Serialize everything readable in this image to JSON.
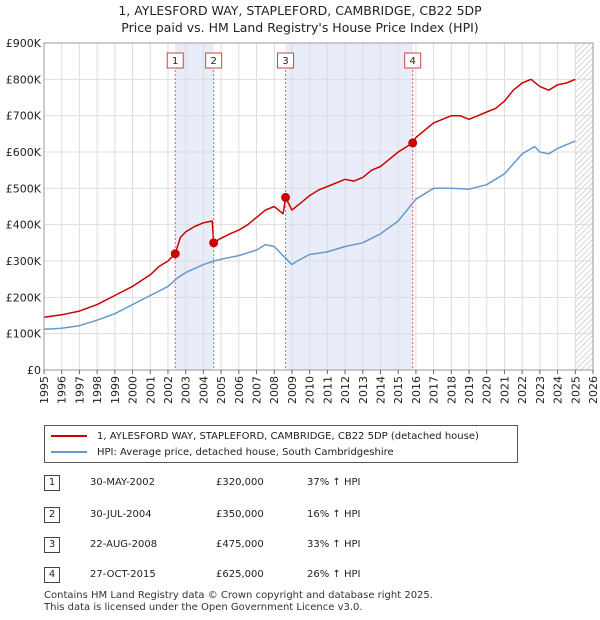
{
  "title_line1": "1, AYLESFORD WAY, STAPLEFORD, CAMBRIDGE, CB22 5DP",
  "title_line2": "Price paid vs. HM Land Registry's House Price Index (HPI)",
  "chart_data": {
    "type": "line",
    "xlim": [
      1995,
      2026
    ],
    "ylim": [
      0,
      900000
    ],
    "y_ticks": [
      {
        "value": 0,
        "label": "£0"
      },
      {
        "value": 100000,
        "label": "£100K"
      },
      {
        "value": 200000,
        "label": "£200K"
      },
      {
        "value": 300000,
        "label": "£300K"
      },
      {
        "value": 400000,
        "label": "£400K"
      },
      {
        "value": 500000,
        "label": "£500K"
      },
      {
        "value": 600000,
        "label": "£600K"
      },
      {
        "value": 700000,
        "label": "£700K"
      },
      {
        "value": 800000,
        "label": "£800K"
      },
      {
        "value": 900000,
        "label": "£900K"
      }
    ],
    "x_ticks": [
      "1995",
      "1996",
      "1997",
      "1998",
      "1999",
      "2000",
      "2001",
      "2002",
      "2003",
      "2004",
      "2005",
      "2006",
      "2007",
      "2008",
      "2009",
      "2010",
      "2011",
      "2012",
      "2013",
      "2014",
      "2015",
      "2016",
      "2017",
      "2018",
      "2019",
      "2020",
      "2021",
      "2022",
      "2023",
      "2024",
      "2025",
      "2026"
    ],
    "shaded_ranges": [
      [
        2002.41,
        2004.58
      ],
      [
        2008.64,
        2015.82
      ]
    ],
    "future_hatch_from": 2025.0,
    "series": [
      {
        "name": "1, AYLESFORD WAY, STAPLEFORD, CAMBRIDGE, CB22 5DP (detached house)",
        "color": "#cc0000",
        "x": [
          1995.0,
          1996.0,
          1997.0,
          1998.0,
          1999.0,
          2000.0,
          2001.0,
          2001.5,
          2002.0,
          2002.41,
          2002.7,
          2003.0,
          2003.5,
          2004.0,
          2004.5,
          2004.58,
          2004.9,
          2005.5,
          2006.0,
          2006.5,
          2007.0,
          2007.5,
          2008.0,
          2008.5,
          2008.64,
          2009.0,
          2009.5,
          2010.0,
          2010.5,
          2011.0,
          2011.5,
          2012.0,
          2012.5,
          2013.0,
          2013.5,
          2014.0,
          2014.5,
          2015.0,
          2015.5,
          2015.82,
          2016.0,
          2016.5,
          2017.0,
          2017.5,
          2018.0,
          2018.5,
          2019.0,
          2019.5,
          2020.0,
          2020.5,
          2021.0,
          2021.5,
          2022.0,
          2022.5,
          2023.0,
          2023.5,
          2024.0,
          2024.5,
          2025.0
        ],
        "values": [
          145000,
          152000,
          162000,
          180000,
          205000,
          230000,
          262000,
          285000,
          300000,
          320000,
          365000,
          380000,
          395000,
          405000,
          410000,
          350000,
          360000,
          375000,
          385000,
          400000,
          420000,
          440000,
          450000,
          430000,
          475000,
          440000,
          460000,
          480000,
          495000,
          505000,
          515000,
          525000,
          520000,
          530000,
          550000,
          560000,
          580000,
          600000,
          615000,
          625000,
          640000,
          660000,
          680000,
          690000,
          700000,
          700000,
          690000,
          700000,
          710000,
          720000,
          740000,
          770000,
          790000,
          800000,
          780000,
          770000,
          785000,
          790000,
          800000
        ]
      },
      {
        "name": "HPI: Average price, detached house, South Cambridgeshire",
        "color": "#6699cc",
        "x": [
          1995.0,
          1996.0,
          1997.0,
          1998.0,
          1999.0,
          2000.0,
          2001.0,
          2002.0,
          2002.5,
          2003.0,
          2004.0,
          2004.6,
          2005.0,
          2006.0,
          2007.0,
          2007.5,
          2008.0,
          2008.7,
          2009.0,
          2009.3,
          2010.0,
          2011.0,
          2012.0,
          2013.0,
          2014.0,
          2015.0,
          2016.0,
          2017.0,
          2018.0,
          2019.0,
          2020.0,
          2021.0,
          2022.0,
          2022.7,
          2023.0,
          2023.5,
          2024.0,
          2024.5,
          2025.0
        ],
        "values": [
          112000,
          115000,
          122000,
          137000,
          155000,
          180000,
          205000,
          230000,
          252000,
          268000,
          290000,
          300000,
          305000,
          315000,
          330000,
          345000,
          340000,
          305000,
          290000,
          300000,
          318000,
          325000,
          340000,
          350000,
          375000,
          410000,
          470000,
          500000,
          500000,
          498000,
          510000,
          540000,
          595000,
          615000,
          600000,
          595000,
          610000,
          620000,
          630000
        ]
      }
    ],
    "sales": [
      {
        "id": "1",
        "x": 2002.41,
        "value": 320000
      },
      {
        "id": "2",
        "x": 2004.58,
        "value": 350000
      },
      {
        "id": "3",
        "x": 2008.64,
        "value": 475000
      },
      {
        "id": "4",
        "x": 2015.82,
        "value": 625000
      }
    ]
  },
  "legend": {
    "property": "1, AYLESFORD WAY, STAPLEFORD, CAMBRIDGE, CB22 5DP (detached house)",
    "hpi": "HPI: Average price, detached house, South Cambridgeshire",
    "property_color": "#cc0000",
    "hpi_color": "#6699cc"
  },
  "table": [
    {
      "num": "1",
      "date": "30-MAY-2002",
      "price": "£320,000",
      "hpi": "37% ↑ HPI"
    },
    {
      "num": "2",
      "date": "30-JUL-2004",
      "price": "£350,000",
      "hpi": "16% ↑ HPI"
    },
    {
      "num": "3",
      "date": "22-AUG-2008",
      "price": "£475,000",
      "hpi": "33% ↑ HPI"
    },
    {
      "num": "4",
      "date": "27-OCT-2015",
      "price": "£625,000",
      "hpi": "26% ↑ HPI"
    }
  ],
  "footer": {
    "line1": "Contains HM Land Registry data © Crown copyright and database right 2025.",
    "line2": "This data is licensed under the Open Government Licence v3.0."
  }
}
